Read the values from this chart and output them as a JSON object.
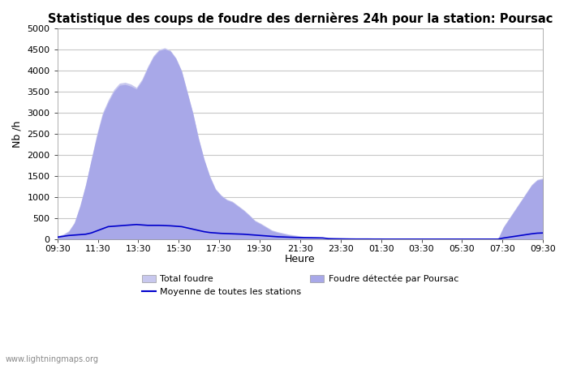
{
  "title": "Statistique des coups de foudre des dernières 24h pour la station: Poursac",
  "ylabel": "Nb /h",
  "xlabel": "Heure",
  "xlim": [
    0,
    48
  ],
  "ylim": [
    0,
    5000
  ],
  "yticks": [
    0,
    500,
    1000,
    1500,
    2000,
    2500,
    3000,
    3500,
    4000,
    4500,
    5000
  ],
  "xtick_labels": [
    "09:30",
    "11:30",
    "13:30",
    "15:30",
    "17:30",
    "19:30",
    "21:30",
    "23:30",
    "01:30",
    "03:30",
    "05:30",
    "07:30",
    "09:30"
  ],
  "xtick_positions": [
    0,
    4,
    8,
    12,
    16,
    20,
    24,
    28,
    32,
    36,
    40,
    44,
    48
  ],
  "total_foudre_color": "#c8c8ee",
  "poursac_color": "#a8a8e8",
  "moyenne_color": "#0000cc",
  "background_color": "#ffffff",
  "grid_color": "#c8c8c8",
  "watermark": "www.lightningmaps.org",
  "legend": {
    "total_foudre": "Total foudre",
    "poursac": "Foudre détectée par Poursac",
    "moyenne": "Moyenne de toutes les stations"
  },
  "total_foudre_y": [
    80,
    120,
    200,
    400,
    800,
    1300,
    1900,
    2500,
    3000,
    3300,
    3550,
    3700,
    3720,
    3680,
    3600,
    3800,
    4100,
    4350,
    4500,
    4540,
    4480,
    4300,
    4000,
    3500,
    3000,
    2400,
    1900,
    1500,
    1200,
    1050,
    950,
    900,
    800,
    700,
    580,
    450,
    380,
    300,
    220,
    180,
    150,
    120,
    100,
    80,
    60,
    50,
    40,
    30,
    5,
    5,
    5,
    5,
    5,
    5,
    5,
    5,
    5,
    5,
    5,
    5,
    5,
    5,
    5,
    5,
    5,
    5,
    5,
    5,
    5,
    5,
    5,
    5,
    5,
    5,
    5,
    5,
    5,
    5,
    5,
    300,
    500,
    700,
    900,
    1100,
    1300,
    1420,
    1450
  ],
  "poursac_y": [
    80,
    100,
    180,
    380,
    780,
    1280,
    1880,
    2450,
    2950,
    3250,
    3500,
    3650,
    3670,
    3630,
    3560,
    3760,
    4060,
    4320,
    4470,
    4510,
    4460,
    4280,
    3980,
    3480,
    2980,
    2380,
    1880,
    1480,
    1180,
    1030,
    930,
    880,
    780,
    680,
    560,
    430,
    360,
    280,
    200,
    160,
    130,
    100,
    80,
    60,
    40,
    30,
    20,
    10,
    2,
    2,
    2,
    2,
    2,
    2,
    2,
    2,
    2,
    2,
    2,
    2,
    2,
    2,
    2,
    2,
    2,
    2,
    2,
    2,
    2,
    2,
    2,
    2,
    2,
    2,
    2,
    2,
    2,
    2,
    2,
    280,
    480,
    680,
    880,
    1080,
    1280,
    1400,
    1430
  ],
  "moyenne_y": [
    50,
    70,
    90,
    100,
    110,
    120,
    150,
    200,
    250,
    300,
    310,
    320,
    330,
    340,
    350,
    340,
    330,
    330,
    330,
    325,
    320,
    310,
    300,
    270,
    240,
    210,
    180,
    160,
    150,
    140,
    135,
    130,
    125,
    120,
    110,
    100,
    90,
    80,
    70,
    60,
    55,
    50,
    45,
    42,
    40,
    38,
    35,
    32,
    15,
    12,
    10,
    8,
    6,
    5,
    5,
    5,
    4,
    4,
    3,
    3,
    3,
    3,
    3,
    3,
    3,
    3,
    3,
    3,
    3,
    3,
    3,
    3,
    3,
    3,
    3,
    3,
    3,
    3,
    3,
    30,
    50,
    70,
    90,
    110,
    130,
    145,
    150
  ]
}
